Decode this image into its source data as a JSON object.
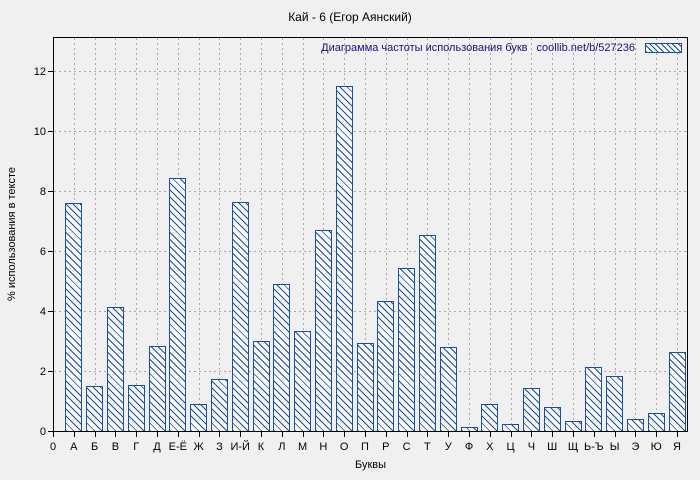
{
  "page": {
    "background": "#f0f0f0"
  },
  "chart_data": {
    "type": "bar",
    "title": "Кай - 6 (Егор Аянский)",
    "legend_label": "Диаграмма частоты использования букв",
    "legend_source": "coollib.net/b/527236",
    "legend_position": "top-right-inside",
    "xlabel": "Буквы",
    "ylabel": "% использования в тексте",
    "origin_label": "0",
    "categories": [
      "А",
      "Б",
      "В",
      "Г",
      "Д",
      "Е-Ё",
      "Ж",
      "З",
      "И-Й",
      "К",
      "Л",
      "М",
      "Н",
      "О",
      "П",
      "Р",
      "С",
      "Т",
      "У",
      "Ф",
      "Х",
      "Ц",
      "Ч",
      "Ш",
      "Щ",
      "Ь-Ъ",
      "Ы",
      "Э",
      "Ю",
      "Я"
    ],
    "values": [
      7.6,
      1.5,
      4.15,
      1.55,
      2.85,
      8.45,
      0.9,
      1.75,
      7.65,
      3.0,
      4.9,
      3.35,
      6.7,
      11.5,
      2.95,
      4.35,
      5.45,
      6.55,
      2.8,
      0.15,
      0.9,
      0.25,
      1.45,
      0.8,
      0.35,
      2.15,
      1.85,
      0.4,
      0.6,
      2.65
    ],
    "yticks": [
      0,
      2,
      4,
      6,
      8,
      10,
      12
    ],
    "ylim": [
      0,
      13.17
    ],
    "grid": true,
    "bar_border_color": "#1b4e9b",
    "bar_fill_color": "#f8f8f8",
    "hatch_style": "diagonal-backslash",
    "grid_color": "#a8a8a8",
    "axis_color": "#000000",
    "legend_text_color": "#13137c"
  }
}
